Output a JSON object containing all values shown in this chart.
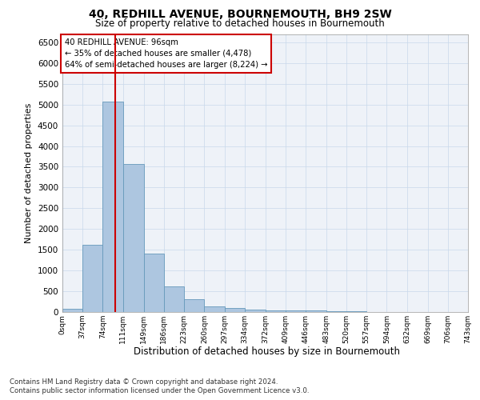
{
  "title": "40, REDHILL AVENUE, BOURNEMOUTH, BH9 2SW",
  "subtitle": "Size of property relative to detached houses in Bournemouth",
  "xlabel": "Distribution of detached houses by size in Bournemouth",
  "ylabel": "Number of detached properties",
  "bar_color": "#adc6e0",
  "bar_edge_color": "#6699bb",
  "grid_color": "#c8d8ea",
  "background_color": "#eef2f8",
  "annotation_box_edge": "#cc0000",
  "redline_color": "#cc0000",
  "redline_x": 96,
  "annotation_line1": "40 REDHILL AVENUE: 96sqm",
  "annotation_line2": "← 35% of detached houses are smaller (4,478)",
  "annotation_line3": "64% of semi-detached houses are larger (8,224) →",
  "footer1": "Contains HM Land Registry data © Crown copyright and database right 2024.",
  "footer2": "Contains public sector information licensed under the Open Government Licence v3.0.",
  "bin_edges": [
    0,
    37,
    74,
    111,
    149,
    186,
    223,
    260,
    297,
    334,
    372,
    409,
    446,
    483,
    520,
    557,
    594,
    632,
    669,
    706,
    743
  ],
  "bin_labels": [
    "0sqm",
    "37sqm",
    "74sqm",
    "111sqm",
    "149sqm",
    "186sqm",
    "223sqm",
    "260sqm",
    "297sqm",
    "334sqm",
    "372sqm",
    "409sqm",
    "446sqm",
    "483sqm",
    "520sqm",
    "557sqm",
    "594sqm",
    "632sqm",
    "669sqm",
    "706sqm",
    "743sqm"
  ],
  "bar_heights": [
    75,
    1625,
    5075,
    3575,
    1400,
    625,
    300,
    140,
    90,
    55,
    40,
    35,
    30,
    15,
    10,
    5,
    5,
    5,
    5,
    5
  ],
  "ylim": [
    0,
    6700
  ],
  "yticks": [
    0,
    500,
    1000,
    1500,
    2000,
    2500,
    3000,
    3500,
    4000,
    4500,
    5000,
    5500,
    6000,
    6500
  ]
}
